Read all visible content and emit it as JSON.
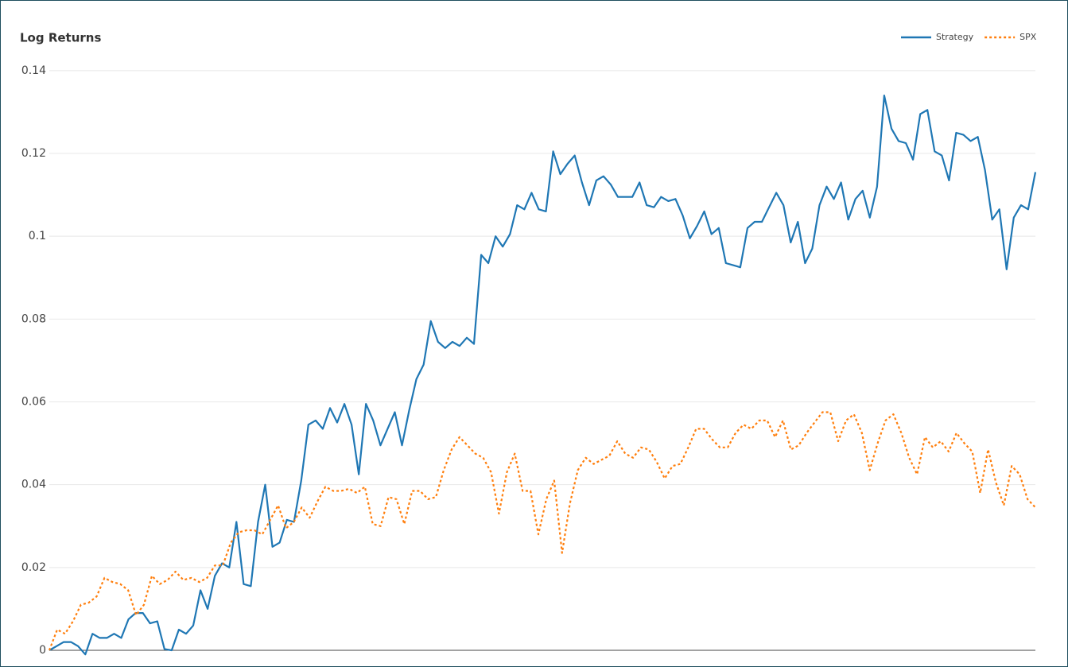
{
  "chart_data": {
    "type": "line",
    "title": "Log Returns",
    "ylim": [
      0,
      0.1417
    ],
    "yticks": [
      0,
      0.02,
      0.04,
      0.06,
      0.08,
      0.1,
      0.12,
      0.14
    ],
    "grid": true,
    "legend": "top-right",
    "series": [
      {
        "name": "Strategy",
        "color": "#1f77b4",
        "dash": "solid",
        "values": [
          0,
          0.001,
          0.002,
          0.002,
          0.001,
          -0.001,
          0.004,
          0.003,
          0.003,
          0.004,
          0.003,
          0.0075,
          0.009,
          0.009,
          0.0065,
          0.007,
          0.0003,
          0,
          0.005,
          0.004,
          0.006,
          0.0145,
          0.01,
          0.018,
          0.021,
          0.02,
          0.031,
          0.016,
          0.0155,
          0.031,
          0.04,
          0.025,
          0.026,
          0.0315,
          0.031,
          0.041,
          0.0545,
          0.0555,
          0.0535,
          0.0585,
          0.055,
          0.0595,
          0.0545,
          0.0425,
          0.0595,
          0.0555,
          0.0495,
          0.0535,
          0.0575,
          0.0495,
          0.058,
          0.0655,
          0.069,
          0.0795,
          0.0745,
          0.073,
          0.0745,
          0.0735,
          0.0755,
          0.074,
          0.0955,
          0.0935,
          0.1,
          0.0975,
          0.1005,
          0.1075,
          0.1065,
          0.1105,
          0.1065,
          0.106,
          0.1205,
          0.115,
          0.1175,
          0.1195,
          0.113,
          0.1075,
          0.1135,
          0.1145,
          0.1125,
          0.1095,
          0.1095,
          0.1095,
          0.113,
          0.1075,
          0.107,
          0.1095,
          0.1085,
          0.109,
          0.105,
          0.0995,
          0.1025,
          0.106,
          0.1005,
          0.102,
          0.0935,
          0.093,
          0.0925,
          0.102,
          0.1035,
          0.1035,
          0.107,
          0.1105,
          0.1075,
          0.0985,
          0.1035,
          0.0935,
          0.097,
          0.1075,
          0.112,
          0.109,
          0.113,
          0.104,
          0.109,
          0.111,
          0.1045,
          0.112,
          0.134,
          0.126,
          0.123,
          0.1225,
          0.1185,
          0.1295,
          0.1305,
          0.1205,
          0.1195,
          0.1135,
          0.125,
          0.1245,
          0.123,
          0.124,
          0.116,
          0.104,
          0.1065,
          0.092,
          0.1045,
          0.1075,
          0.1065,
          0.1155
        ]
      },
      {
        "name": "SPX",
        "color": "#ff7f0e",
        "dash": "dotted",
        "values": [
          0,
          0.005,
          0.004,
          0.007,
          0.011,
          0.0115,
          0.013,
          0.0175,
          0.0165,
          0.016,
          0.0145,
          0.0085,
          0.011,
          0.018,
          0.016,
          0.017,
          0.019,
          0.017,
          0.0175,
          0.0165,
          0.0175,
          0.0205,
          0.0205,
          0.026,
          0.0285,
          0.029,
          0.029,
          0.028,
          0.0315,
          0.035,
          0.0295,
          0.031,
          0.0345,
          0.032,
          0.036,
          0.0395,
          0.0385,
          0.0385,
          0.039,
          0.038,
          0.0395,
          0.0305,
          0.03,
          0.037,
          0.0365,
          0.0305,
          0.0385,
          0.0385,
          0.0365,
          0.037,
          0.0435,
          0.0485,
          0.0515,
          0.0495,
          0.0475,
          0.0465,
          0.043,
          0.033,
          0.043,
          0.0475,
          0.0385,
          0.0385,
          0.028,
          0.0365,
          0.041,
          0.0235,
          0.0355,
          0.0435,
          0.0465,
          0.045,
          0.046,
          0.047,
          0.0505,
          0.0475,
          0.0465,
          0.049,
          0.0485,
          0.0455,
          0.0415,
          0.0445,
          0.045,
          0.049,
          0.0535,
          0.0535,
          0.051,
          0.049,
          0.049,
          0.0525,
          0.0545,
          0.0535,
          0.0555,
          0.0555,
          0.0515,
          0.0555,
          0.0485,
          0.0495,
          0.0525,
          0.055,
          0.0575,
          0.0575,
          0.0505,
          0.0555,
          0.057,
          0.0525,
          0.0435,
          0.05,
          0.0555,
          0.057,
          0.0525,
          0.0465,
          0.0425,
          0.0515,
          0.049,
          0.0505,
          0.048,
          0.0525,
          0.05,
          0.048,
          0.038,
          0.0485,
          0.0405,
          0.035,
          0.0445,
          0.0425,
          0.0365,
          0.0345
        ]
      }
    ]
  }
}
